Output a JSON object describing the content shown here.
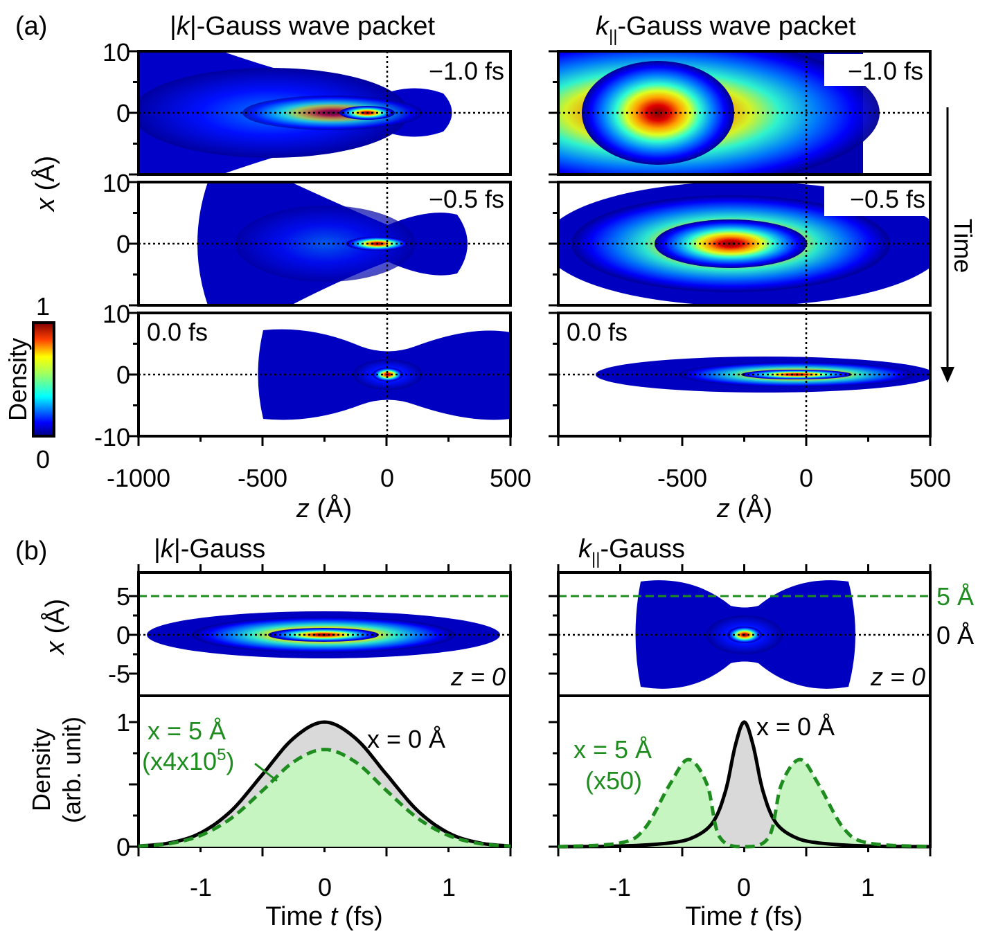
{
  "panel_labels": {
    "a": "(a)",
    "b": "(b)"
  },
  "titles": {
    "a_left": {
      "pre": "|",
      "k": "k",
      "post": "|-Gauss wave packet"
    },
    "a_right": {
      "k": "k",
      "sub": "||",
      "post": "-Gauss wave packet"
    },
    "b_left": {
      "pre": "|",
      "k": "k",
      "post": "|-Gauss"
    },
    "b_right": {
      "k": "k",
      "sub": "||",
      "post": "-Gauss"
    }
  },
  "time_labels": [
    "−1.0 fs",
    "−0.5 fs",
    "0.0 fs"
  ],
  "time_arrow_label": "Time",
  "axes_a": {
    "ylabel_var": "x",
    "ylabel_unit": " (Å)",
    "yticks": [
      "10",
      "0",
      "-10"
    ],
    "xlabel_var": "z",
    "xlabel_unit": " (Å)",
    "xticks_left": [
      "-1000",
      "-500",
      "0",
      "500"
    ],
    "xticks_right": [
      "-500",
      "0",
      "500"
    ]
  },
  "colorbar": {
    "label": "Density",
    "max": "1",
    "min": "0"
  },
  "axes_b_top": {
    "ylabel_var": "x",
    "ylabel_unit": " (Å)",
    "yticks": [
      "5",
      "0",
      "-5"
    ],
    "z_label": "z = 0",
    "right_labels": [
      "5 Å",
      "0 Å"
    ]
  },
  "axes_b_bottom": {
    "ylabel1": "Density",
    "ylabel2": "(arb. unit)",
    "yticks": [
      "1",
      "0"
    ],
    "xticks": [
      "-1",
      "0",
      "1"
    ],
    "xlabel_pre": "Time ",
    "xlabel_var": "t",
    "xlabel_post": " (fs)"
  },
  "annotations": {
    "left_x5": "x = 5 Å",
    "left_scale": "(x4x10",
    "left_scale_exp": "5",
    "left_scale_close": ")",
    "left_x0": "x = 0 Å",
    "right_x5": "x = 5 Å",
    "right_scale": "(x50)",
    "right_x0": "x = 0 Å"
  },
  "colors": {
    "green": "#1e8c1e",
    "green_fill": "#c6f5c2",
    "gray_fill": "#d9d9d9"
  },
  "chart_data": [
    {
      "type": "line",
      "panel": "b-left",
      "title": "|k|-Gauss",
      "xlabel": "Time t (fs)",
      "ylabel": "Density (arb. unit)",
      "xlim": [
        -1.5,
        1.5
      ],
      "ylim": [
        0,
        1.2
      ],
      "series": [
        {
          "name": "x = 0 Å",
          "x": [
            -1.5,
            -1.25,
            -1.0,
            -0.75,
            -0.5,
            -0.25,
            0,
            0.25,
            0.5,
            0.75,
            1.0,
            1.25,
            1.5
          ],
          "values": [
            0.005,
            0.03,
            0.11,
            0.29,
            0.58,
            0.87,
            1.0,
            0.87,
            0.58,
            0.29,
            0.11,
            0.03,
            0.005
          ]
        },
        {
          "name": "x = 5 Å",
          "x": [
            -1.5,
            -1.25,
            -1.0,
            -0.75,
            -0.5,
            -0.25,
            0,
            0.25,
            0.5,
            0.75,
            1.0,
            1.25,
            1.5
          ],
          "values": [
            0.004,
            0.025,
            0.09,
            0.23,
            0.45,
            0.68,
            0.78,
            0.68,
            0.45,
            0.23,
            0.09,
            0.025,
            0.004
          ]
        }
      ]
    },
    {
      "type": "line",
      "panel": "b-right",
      "title": "k||-Gauss",
      "xlabel": "Time t (fs)",
      "ylabel": "Density (arb. unit)",
      "xlim": [
        -1.5,
        1.5
      ],
      "ylim": [
        0,
        1.2
      ],
      "series": [
        {
          "name": "x = 0 Å",
          "x": [
            -1.5,
            -1.0,
            -0.6,
            -0.4,
            -0.25,
            -0.15,
            -0.07,
            0,
            0.07,
            0.15,
            0.25,
            0.4,
            0.6,
            1.0,
            1.5
          ],
          "values": [
            0.0,
            0.005,
            0.03,
            0.08,
            0.2,
            0.45,
            0.82,
            1.0,
            0.82,
            0.45,
            0.2,
            0.08,
            0.03,
            0.005,
            0.0
          ]
        },
        {
          "name": "x = 5 Å",
          "x": [
            -1.5,
            -1.0,
            -0.8,
            -0.6,
            -0.45,
            -0.3,
            -0.2,
            0,
            0.2,
            0.3,
            0.45,
            0.6,
            0.8,
            1.0,
            1.5
          ],
          "values": [
            0.0,
            0.03,
            0.15,
            0.5,
            0.7,
            0.5,
            0.08,
            0.0,
            0.08,
            0.5,
            0.7,
            0.5,
            0.15,
            0.03,
            0.0
          ]
        }
      ]
    }
  ]
}
